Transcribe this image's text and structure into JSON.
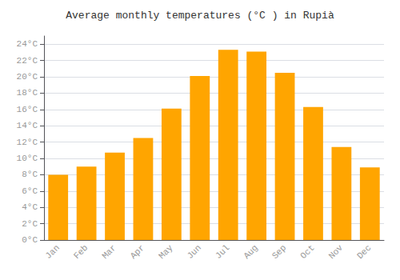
{
  "chart_data": {
    "type": "bar",
    "title": "Average monthly temperatures (°C ) in Rupià",
    "categories": [
      "Jan",
      "Feb",
      "Mar",
      "Apr",
      "May",
      "Jun",
      "Jul",
      "Aug",
      "Sep",
      "Oct",
      "Nov",
      "Dec"
    ],
    "values": [
      8.0,
      9.0,
      10.7,
      12.5,
      16.1,
      20.1,
      23.3,
      23.1,
      20.5,
      16.3,
      11.4,
      8.9
    ],
    "color": "#FFA500",
    "ylim": [
      0,
      25
    ],
    "yticks": [
      {
        "value": 0,
        "label": "0°C"
      },
      {
        "value": 2,
        "label": "2°C"
      },
      {
        "value": 4,
        "label": "4°C"
      },
      {
        "value": 6,
        "label": "6°C"
      },
      {
        "value": 8,
        "label": "8°C"
      },
      {
        "value": 10,
        "label": "10°C"
      },
      {
        "value": 12,
        "label": "12°C"
      },
      {
        "value": 14,
        "label": "14°C"
      },
      {
        "value": 16,
        "label": "16°C"
      },
      {
        "value": 18,
        "label": "18°C"
      },
      {
        "value": 20,
        "label": "20°C"
      },
      {
        "value": 22,
        "label": "22°C"
      },
      {
        "value": 24,
        "label": "24°C"
      }
    ],
    "grid": true
  }
}
